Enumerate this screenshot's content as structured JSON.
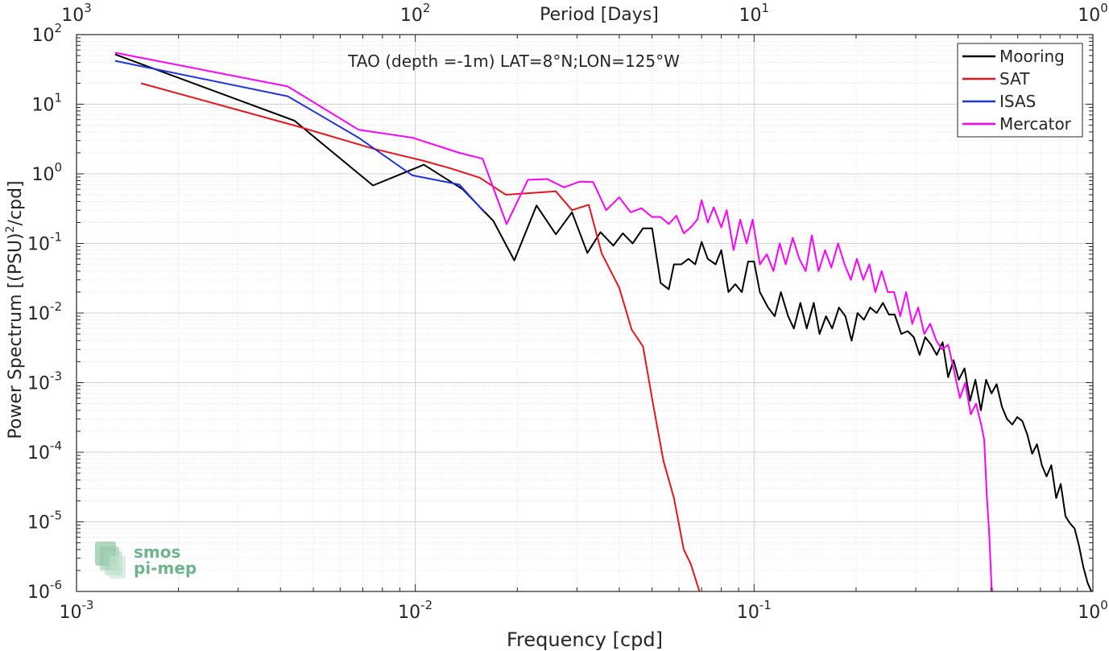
{
  "chart_data": {
    "type": "line",
    "title": "TAO (depth =-1m) LAT=8°N;LON=125°W",
    "xlabel": "Frequency [cpd]",
    "ylabel_main": "Power Spectrum [(PSU)",
    "ylabel_sup": "2",
    "ylabel_tail": "/cpd]",
    "top_xlabel": "Period [Days]",
    "xscale": "log",
    "yscale": "log",
    "xlim": [
      0.001,
      1
    ],
    "ylim": [
      1e-06,
      100
    ],
    "grid": true,
    "minor_grid": true,
    "legend_position": "top-right",
    "x_ticks": [
      {
        "value": 0.001,
        "base": "10",
        "exp": "-3"
      },
      {
        "value": 0.01,
        "base": "10",
        "exp": "-2"
      },
      {
        "value": 0.1,
        "base": "10",
        "exp": "-1"
      },
      {
        "value": 1,
        "base": "10",
        "exp": "0"
      }
    ],
    "y_ticks": [
      {
        "value": 1e-06,
        "base": "10",
        "exp": "-6"
      },
      {
        "value": 1e-05,
        "base": "10",
        "exp": "-5"
      },
      {
        "value": 0.0001,
        "base": "10",
        "exp": "-4"
      },
      {
        "value": 0.001,
        "base": "10",
        "exp": "-3"
      },
      {
        "value": 0.01,
        "base": "10",
        "exp": "-2"
      },
      {
        "value": 0.1,
        "base": "10",
        "exp": "-1"
      },
      {
        "value": 1,
        "base": "10",
        "exp": "0"
      },
      {
        "value": 10,
        "base": "10",
        "exp": "1"
      },
      {
        "value": 100,
        "base": "10",
        "exp": "2"
      }
    ],
    "top_ticks": [
      {
        "value": 0.001,
        "base": "10",
        "exp": "3"
      },
      {
        "value": 0.01,
        "base": "10",
        "exp": "2"
      },
      {
        "value": 0.1,
        "base": "10",
        "exp": "1"
      },
      {
        "value": 1,
        "base": "10",
        "exp": "0"
      }
    ],
    "series": [
      {
        "name": "Mooring",
        "color": "#000000",
        "points": [
          [
            0.0013,
            52
          ],
          [
            0.0044,
            5.8
          ],
          [
            0.0075,
            0.68
          ],
          [
            0.0106,
            1.35
          ],
          [
            0.0138,
            0.6
          ],
          [
            0.017,
            0.21
          ],
          [
            0.0196,
            0.057
          ],
          [
            0.0228,
            0.35
          ],
          [
            0.026,
            0.135
          ],
          [
            0.029,
            0.28
          ],
          [
            0.0322,
            0.073
          ],
          [
            0.0352,
            0.145
          ],
          [
            0.0384,
            0.093
          ],
          [
            0.041,
            0.14
          ],
          [
            0.0438,
            0.1
          ],
          [
            0.047,
            0.165
          ],
          [
            0.05,
            0.165
          ],
          [
            0.053,
            0.027
          ],
          [
            0.056,
            0.022
          ],
          [
            0.058,
            0.05
          ],
          [
            0.061,
            0.05
          ],
          [
            0.064,
            0.06
          ],
          [
            0.067,
            0.05
          ],
          [
            0.07,
            0.105
          ],
          [
            0.073,
            0.06
          ],
          [
            0.077,
            0.05
          ],
          [
            0.08,
            0.08
          ],
          [
            0.084,
            0.02
          ],
          [
            0.088,
            0.026
          ],
          [
            0.092,
            0.02
          ],
          [
            0.096,
            0.055
          ],
          [
            0.1,
            0.055
          ],
          [
            0.104,
            0.02
          ],
          [
            0.11,
            0.012
          ],
          [
            0.115,
            0.009
          ],
          [
            0.12,
            0.02
          ],
          [
            0.126,
            0.009
          ],
          [
            0.131,
            0.006
          ],
          [
            0.137,
            0.014
          ],
          [
            0.143,
            0.006
          ],
          [
            0.15,
            0.014
          ],
          [
            0.156,
            0.005
          ],
          [
            0.163,
            0.009
          ],
          [
            0.17,
            0.006
          ],
          [
            0.178,
            0.012
          ],
          [
            0.186,
            0.009
          ],
          [
            0.194,
            0.004
          ],
          [
            0.202,
            0.01
          ],
          [
            0.211,
            0.008
          ],
          [
            0.22,
            0.012
          ],
          [
            0.23,
            0.01
          ],
          [
            0.24,
            0.014
          ],
          [
            0.25,
            0.0095
          ],
          [
            0.26,
            0.0095
          ],
          [
            0.272,
            0.005
          ],
          [
            0.284,
            0.0055
          ],
          [
            0.296,
            0.0045
          ],
          [
            0.308,
            0.0025
          ],
          [
            0.32,
            0.0045
          ],
          [
            0.333,
            0.0035
          ],
          [
            0.346,
            0.0025
          ],
          [
            0.36,
            0.0038
          ],
          [
            0.374,
            0.0012
          ],
          [
            0.388,
            0.0021
          ],
          [
            0.402,
            0.0011
          ],
          [
            0.418,
            0.0016
          ],
          [
            0.434,
            0.00055
          ],
          [
            0.45,
            0.0011
          ],
          [
            0.467,
            0.0004
          ],
          [
            0.484,
            0.0011
          ],
          [
            0.502,
            0.0007
          ],
          [
            0.52,
            0.00095
          ],
          [
            0.539,
            0.00045
          ],
          [
            0.558,
            0.0003
          ],
          [
            0.578,
            0.00025
          ],
          [
            0.598,
            0.00032
          ],
          [
            0.619,
            0.00028
          ],
          [
            0.64,
            0.00018
          ],
          [
            0.662,
            9.5e-05
          ],
          [
            0.684,
            0.00013
          ],
          [
            0.707,
            6.5e-05
          ],
          [
            0.73,
            4.5e-05
          ],
          [
            0.754,
            6.5e-05
          ],
          [
            0.779,
            2.2e-05
          ],
          [
            0.804,
            3.5e-05
          ],
          [
            0.83,
            1.2e-05
          ],
          [
            0.856,
            9.5e-06
          ],
          [
            0.883,
            8e-06
          ],
          [
            0.91,
            4.5e-06
          ],
          [
            0.938,
            2.2e-06
          ],
          [
            0.966,
            1.3e-06
          ],
          [
            0.99,
            1e-06
          ]
        ]
      },
      {
        "name": "SAT",
        "color": "#e8141c",
        "points": [
          [
            0.00155,
            20
          ],
          [
            0.0045,
            4.8
          ],
          [
            0.0075,
            2.3
          ],
          [
            0.0105,
            1.55
          ],
          [
            0.0127,
            1.2
          ],
          [
            0.0155,
            0.88
          ],
          [
            0.0185,
            0.5
          ],
          [
            0.026,
            0.56
          ],
          [
            0.029,
            0.3
          ],
          [
            0.0325,
            0.36
          ],
          [
            0.0355,
            0.072
          ],
          [
            0.04,
            0.023
          ],
          [
            0.0435,
            0.0058
          ],
          [
            0.047,
            0.0033
          ],
          [
            0.0505,
            0.00045
          ],
          [
            0.054,
            7.5e-05
          ],
          [
            0.058,
            2.2e-05
          ],
          [
            0.062,
            4e-06
          ],
          [
            0.065,
            2.5e-06
          ],
          [
            0.069,
            1e-06
          ]
        ]
      },
      {
        "name": "ISAS",
        "color": "#1f34e0",
        "points": [
          [
            0.0013,
            42
          ],
          [
            0.0042,
            13
          ],
          [
            0.0068,
            3.3
          ],
          [
            0.0098,
            0.95
          ],
          [
            0.0135,
            0.7
          ],
          [
            0.016,
            0.28
          ]
        ]
      },
      {
        "name": "Mercator",
        "color": "#ff00ff",
        "points": [
          [
            0.0013,
            55
          ],
          [
            0.0042,
            18
          ],
          [
            0.0068,
            4.3
          ],
          [
            0.0098,
            3.3
          ],
          [
            0.0135,
            2
          ],
          [
            0.0158,
            1.65
          ],
          [
            0.0186,
            0.19
          ],
          [
            0.0215,
            0.82
          ],
          [
            0.0245,
            0.84
          ],
          [
            0.0275,
            0.64
          ],
          [
            0.0305,
            0.77
          ],
          [
            0.0335,
            0.76
          ],
          [
            0.0366,
            0.3
          ],
          [
            0.04,
            0.46
          ],
          [
            0.0432,
            0.28
          ],
          [
            0.0465,
            0.32
          ],
          [
            0.05,
            0.24
          ],
          [
            0.053,
            0.24
          ],
          [
            0.056,
            0.19
          ],
          [
            0.059,
            0.25
          ],
          [
            0.062,
            0.14
          ],
          [
            0.065,
            0.17
          ],
          [
            0.068,
            0.22
          ],
          [
            0.07,
            0.42
          ],
          [
            0.073,
            0.2
          ],
          [
            0.076,
            0.33
          ],
          [
            0.08,
            0.17
          ],
          [
            0.083,
            0.3
          ],
          [
            0.087,
            0.08
          ],
          [
            0.091,
            0.22
          ],
          [
            0.095,
            0.1
          ],
          [
            0.099,
            0.22
          ],
          [
            0.104,
            0.05
          ],
          [
            0.109,
            0.07
          ],
          [
            0.114,
            0.04
          ],
          [
            0.119,
            0.1
          ],
          [
            0.124,
            0.05
          ],
          [
            0.13,
            0.12
          ],
          [
            0.136,
            0.06
          ],
          [
            0.142,
            0.04
          ],
          [
            0.148,
            0.13
          ],
          [
            0.155,
            0.04
          ],
          [
            0.162,
            0.08
          ],
          [
            0.169,
            0.045
          ],
          [
            0.177,
            0.1
          ],
          [
            0.185,
            0.05
          ],
          [
            0.193,
            0.03
          ],
          [
            0.201,
            0.06
          ],
          [
            0.21,
            0.03
          ],
          [
            0.219,
            0.05
          ],
          [
            0.228,
            0.02
          ],
          [
            0.238,
            0.04
          ],
          [
            0.248,
            0.02
          ],
          [
            0.259,
            0.02
          ],
          [
            0.27,
            0.009
          ],
          [
            0.281,
            0.02
          ],
          [
            0.293,
            0.007
          ],
          [
            0.305,
            0.012
          ],
          [
            0.318,
            0.005
          ],
          [
            0.331,
            0.007
          ],
          [
            0.345,
            0.004
          ],
          [
            0.359,
            0.003
          ],
          [
            0.374,
            0.0035
          ],
          [
            0.389,
            0.0015
          ],
          [
            0.405,
            0.0006
          ],
          [
            0.42,
            0.001
          ],
          [
            0.436,
            0.00035
          ],
          [
            0.452,
            0.0005
          ],
          [
            0.468,
            0.00025
          ],
          [
            0.478,
            0.00015
          ],
          [
            0.486,
            2.5e-05
          ],
          [
            0.494,
            7e-06
          ],
          [
            0.502,
            1.2e-06
          ],
          [
            0.505,
            1e-06
          ]
        ]
      }
    ]
  },
  "logo": {
    "line1": "smos",
    "line2": "pi-mep",
    "color": "#6fb48c"
  }
}
